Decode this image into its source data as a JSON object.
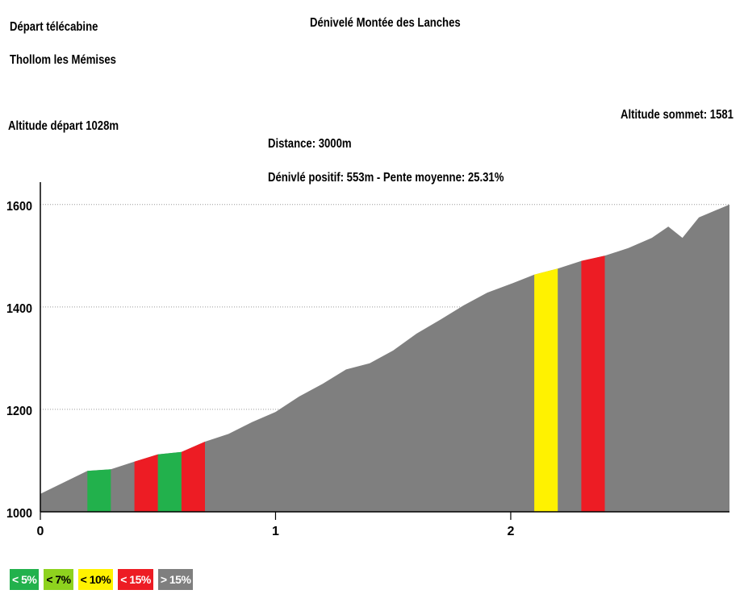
{
  "header": {
    "title": "Dénivelé Montée des Lanches",
    "start_line1": "Départ télécabine",
    "start_line2": "Thollom les Mémises",
    "altitude_start": "Altitude départ 1028m",
    "altitude_top": "Altitude sommet: 1581",
    "distance": "Distance: 3000m",
    "summary": "Dénivlé positif: 553m - Pente moyenne: 25.31%"
  },
  "legend": [
    {
      "label": "< 5%",
      "color": "#22b14c",
      "text_color": "#ffffff"
    },
    {
      "label": "< 7%",
      "color": "#8ed21e",
      "text_color": "#000000"
    },
    {
      "label": "< 10%",
      "color": "#fff200",
      "text_color": "#000000"
    },
    {
      "label": "< 15%",
      "color": "#ed1c24",
      "text_color": "#ffffff"
    },
    {
      "label": "> 15%",
      "color": "#7f7f7f",
      "text_color": "#ffffff"
    }
  ],
  "chart_data": {
    "type": "area",
    "xlabel": "",
    "ylabel": "",
    "xlim": [
      0,
      2.93
    ],
    "ylim": [
      1000,
      1650
    ],
    "x_ticks": [
      0,
      1,
      2
    ],
    "y_ticks": [
      1000,
      1200,
      1400,
      1600
    ],
    "grid": "horizontal dotted",
    "profile": [
      {
        "x": 0.0,
        "y": 1035
      },
      {
        "x": 0.2,
        "y": 1080
      },
      {
        "x": 0.3,
        "y": 1083
      },
      {
        "x": 0.4,
        "y": 1098
      },
      {
        "x": 0.5,
        "y": 1112
      },
      {
        "x": 0.6,
        "y": 1117
      },
      {
        "x": 0.7,
        "y": 1137
      },
      {
        "x": 0.8,
        "y": 1152
      },
      {
        "x": 0.9,
        "y": 1175
      },
      {
        "x": 1.0,
        "y": 1195
      },
      {
        "x": 1.1,
        "y": 1225
      },
      {
        "x": 1.2,
        "y": 1250
      },
      {
        "x": 1.3,
        "y": 1278
      },
      {
        "x": 1.4,
        "y": 1290
      },
      {
        "x": 1.5,
        "y": 1315
      },
      {
        "x": 1.6,
        "y": 1348
      },
      {
        "x": 1.7,
        "y": 1375
      },
      {
        "x": 1.8,
        "y": 1403
      },
      {
        "x": 1.9,
        "y": 1428
      },
      {
        "x": 2.0,
        "y": 1445
      },
      {
        "x": 2.1,
        "y": 1463
      },
      {
        "x": 2.2,
        "y": 1475
      },
      {
        "x": 2.3,
        "y": 1490
      },
      {
        "x": 2.4,
        "y": 1500
      },
      {
        "x": 2.5,
        "y": 1515
      },
      {
        "x": 2.6,
        "y": 1535
      },
      {
        "x": 2.67,
        "y": 1557
      },
      {
        "x": 2.73,
        "y": 1535
      },
      {
        "x": 2.8,
        "y": 1575
      },
      {
        "x": 2.93,
        "y": 1600
      }
    ],
    "segments": [
      {
        "x0": 0.2,
        "x1": 0.3,
        "class": "< 5%"
      },
      {
        "x0": 0.4,
        "x1": 0.5,
        "class": "< 15%"
      },
      {
        "x0": 0.5,
        "x1": 0.6,
        "class": "< 5%"
      },
      {
        "x0": 0.6,
        "x1": 0.7,
        "class": "< 15%"
      },
      {
        "x0": 2.1,
        "x1": 2.2,
        "class": "< 10%"
      },
      {
        "x0": 2.3,
        "x1": 2.4,
        "class": "< 15%"
      }
    ]
  }
}
